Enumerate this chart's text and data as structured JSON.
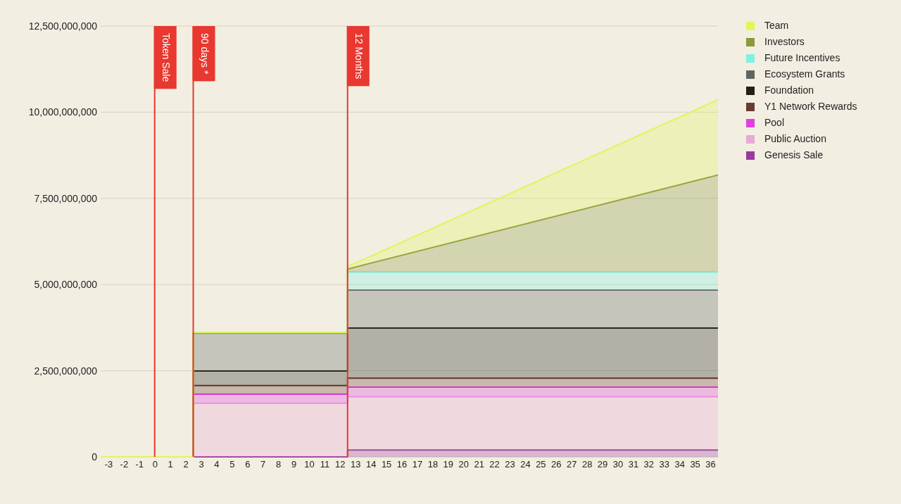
{
  "chart_data": {
    "type": "area",
    "stacked": true,
    "x": [
      -3.5,
      2.5,
      2.5,
      12.5,
      12.5,
      36.5
    ],
    "xlim": [
      -3.5,
      36.5
    ],
    "xticks": [
      -3,
      -2,
      -1,
      0,
      1,
      2,
      3,
      4,
      5,
      6,
      7,
      8,
      9,
      10,
      11,
      12,
      13,
      14,
      15,
      16,
      17,
      18,
      19,
      20,
      21,
      22,
      23,
      24,
      25,
      26,
      27,
      28,
      29,
      30,
      31,
      32,
      33,
      34,
      35,
      36
    ],
    "ylim": [
      0,
      12500000000
    ],
    "yticks": [
      0,
      {
        "value": 2500000000,
        "label": "2,500,000,000"
      },
      {
        "value": 5000000000,
        "label": "5,000,000,000"
      },
      {
        "value": 7500000000,
        "label": "7,500,000,000"
      },
      {
        "value": 10000000000,
        "label": "10,000,000,000"
      },
      {
        "value": 12500000000,
        "label": "12,500,000,000"
      }
    ],
    "grid": "y",
    "legend": "top right",
    "series": [
      {
        "name": "Genesis Sale",
        "color": "#9a3a9a",
        "values": [
          0,
          0,
          0,
          0,
          200000000,
          200000000
        ]
      },
      {
        "name": "Public Auction",
        "color": "#e8a8d8",
        "values": [
          0,
          0,
          1550000000,
          1550000000,
          1540000000,
          1540000000
        ]
      },
      {
        "name": "Pool",
        "color": "#e040e0",
        "values": [
          0,
          0,
          270000000,
          270000000,
          280000000,
          280000000
        ]
      },
      {
        "name": "Y1 Network Rewards",
        "color": "#6b3a30",
        "values": [
          0,
          0,
          250000000,
          250000000,
          260000000,
          260000000
        ]
      },
      {
        "name": "Foundation",
        "color": "#222018",
        "values": [
          0,
          0,
          420000000,
          420000000,
          1460000000,
          1460000000
        ]
      },
      {
        "name": "Ecosystem Grants",
        "color": "#5f6660",
        "values": [
          0,
          0,
          1100000000,
          1100000000,
          1100000000,
          1100000000
        ]
      },
      {
        "name": "Future Incentives",
        "color": "#7ef2e0",
        "values": [
          0,
          0,
          0,
          0,
          520000000,
          520000000
        ]
      },
      {
        "name": "Investors",
        "color": "#8a9a3a",
        "values": [
          0,
          0,
          0,
          0,
          90000000,
          2820000000
        ]
      },
      {
        "name": "Team",
        "color": "#e2f55a",
        "values": [
          0,
          0,
          20000000,
          20000000,
          70000000,
          2180000000
        ]
      }
    ],
    "ref_lines": [
      {
        "axis": "x",
        "value": 0,
        "label": "Token Sale",
        "color": "#e8382f"
      },
      {
        "axis": "x",
        "value": 2.5,
        "label": "90 days *",
        "color": "#e8382f"
      },
      {
        "axis": "x",
        "value": 12.5,
        "label": "12 Months",
        "color": "#e8382f"
      }
    ]
  }
}
